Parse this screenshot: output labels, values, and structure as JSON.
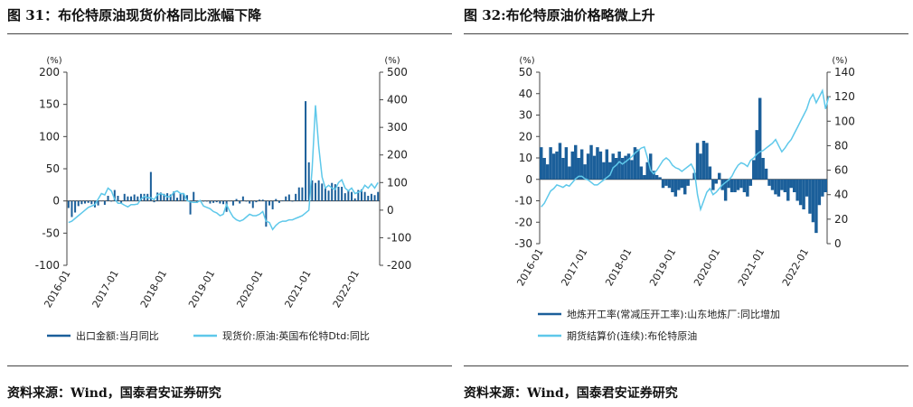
{
  "left": {
    "title": "图 31：布伦特原油现货价格同比涨幅下降",
    "source": "资料来源：Wind，国泰君安证券研究"
  },
  "right": {
    "title": "图 32:布伦特原油价格略微上升",
    "source": "资料来源：Wind，国泰君安证券研究"
  },
  "chart_data": [
    {
      "type": "bar",
      "x_ticks": [
        "2016-01",
        "2017-01",
        "2018-01",
        "2019-01",
        "2020-01",
        "2021-01",
        "2022-01"
      ],
      "left_unit": "(%)",
      "right_unit": "(%)",
      "ylim_left": [
        -100,
        200
      ],
      "yticks_left": [
        -100,
        -50,
        0,
        50,
        100,
        150,
        200
      ],
      "ylim_right": [
        -200,
        500
      ],
      "yticks_right": [
        -200,
        -100,
        0,
        100,
        200,
        300,
        400,
        500
      ],
      "colors": {
        "bars": "#1b5f9a",
        "line": "#5ec8ea"
      },
      "series": [
        {
          "name": "出口金额:当月同比",
          "axis": "left",
          "style": "bar",
          "values": [
            -11,
            -25,
            -18,
            -8,
            -5,
            -4,
            -3,
            -5,
            -10,
            -7,
            0,
            -6,
            8,
            -1,
            17,
            8,
            -3,
            11,
            7,
            7,
            10,
            7,
            11,
            11,
            11,
            45,
            -2,
            13,
            13,
            11,
            12,
            10,
            15,
            5,
            11,
            11,
            9,
            -21,
            14,
            -3,
            1,
            -1,
            -1,
            -4,
            -3,
            -2,
            -4,
            -5,
            -17,
            0,
            -7,
            3,
            -4,
            7,
            -1,
            -4,
            -11,
            -2,
            2,
            2,
            -40,
            -7,
            -13,
            3,
            -3,
            1,
            7,
            10,
            -1,
            11,
            21,
            21,
            155,
            60,
            32,
            28,
            32,
            27,
            20,
            16,
            28,
            26,
            22,
            22,
            12,
            16,
            14,
            4,
            17,
            18,
            14,
            8,
            11,
            9,
            14
          ]
        },
        {
          "name": "现货价:原油:英国布伦特Dtd:同比",
          "axis": "right",
          "style": "line",
          "values": [
            -45,
            -40,
            -30,
            -20,
            -10,
            0,
            10,
            15,
            20,
            40,
            60,
            55,
            80,
            70,
            40,
            25,
            25,
            18,
            12,
            20,
            20,
            22,
            40,
            50,
            45,
            45,
            38,
            55,
            60,
            55,
            48,
            50,
            65,
            70,
            60,
            60,
            35,
            30,
            28,
            28,
            35,
            15,
            10,
            5,
            -5,
            -10,
            -20,
            -15,
            20,
            -5,
            -25,
            -35,
            -40,
            -35,
            -25,
            -15,
            -20,
            -20,
            -15,
            -5,
            -40,
            -45,
            -70,
            -55,
            -45,
            -40,
            -40,
            -35,
            -35,
            -30,
            -25,
            -20,
            -10,
            0,
            150,
            380,
            230,
            120,
            80,
            90,
            80,
            75,
            100,
            110,
            80,
            70,
            80,
            60,
            65,
            70,
            90,
            80,
            95,
            80,
            100
          ]
        }
      ]
    },
    {
      "type": "bar",
      "x_ticks": [
        "2016-01",
        "2017-01",
        "2018-01",
        "2019-01",
        "2020-01",
        "2021-01",
        "2022-01"
      ],
      "left_unit": "(%)",
      "right_unit": "(%)",
      "ylim_left": [
        -30,
        50
      ],
      "yticks_left": [
        -30,
        -20,
        -10,
        0,
        10,
        20,
        30,
        40,
        50
      ],
      "ylim_right": [
        0,
        140
      ],
      "yticks_right": [
        0,
        20,
        40,
        60,
        80,
        100,
        120,
        140
      ],
      "colors": {
        "bars": "#1b5f9a",
        "line": "#5ec8ea"
      },
      "series": [
        {
          "name": "地炼开工率(常减压开工率):山东地炼厂:同比增加",
          "axis": "left",
          "style": "area",
          "values": [
            15,
            10,
            7,
            15,
            12,
            13,
            17,
            10,
            15,
            6,
            13,
            16,
            10,
            14,
            7,
            12,
            16,
            11,
            15,
            13,
            8,
            14,
            8,
            12,
            10,
            13,
            10,
            11,
            12,
            9,
            15,
            14,
            6,
            2,
            8,
            12,
            4,
            2,
            1,
            -4,
            -3,
            -4,
            -6,
            -8,
            -5,
            -4,
            -7,
            -3,
            0,
            3,
            17,
            12,
            18,
            17,
            6,
            -5,
            -2,
            3,
            -5,
            -10,
            -4,
            -6,
            -6,
            -5,
            -4,
            -6,
            -8,
            -3,
            9,
            23,
            38,
            10,
            5,
            -3,
            -5,
            -7,
            -8,
            -5,
            -6,
            -10,
            -4,
            -6,
            -10,
            -12,
            -14,
            -8,
            -16,
            -20,
            -25,
            -12,
            -8,
            -6
          ]
        },
        {
          "name": "期货结算价(连续):布伦特原油",
          "axis": "right",
          "style": "line",
          "values": [
            30,
            33,
            38,
            43,
            45,
            48,
            47,
            46,
            48,
            47,
            50,
            53,
            55,
            55,
            53,
            52,
            50,
            48,
            48,
            50,
            52,
            54,
            56,
            62,
            64,
            67,
            65,
            67,
            69,
            71,
            74,
            76,
            78,
            79,
            70,
            60,
            57,
            60,
            64,
            68,
            70,
            68,
            64,
            62,
            61,
            59,
            61,
            63,
            65,
            60,
            40,
            28,
            35,
            42,
            45,
            40,
            42,
            45,
            48,
            50,
            52,
            55,
            60,
            64,
            66,
            65,
            63,
            68,
            70,
            73,
            75,
            76,
            78,
            80,
            82,
            85,
            80,
            75,
            78,
            82,
            85,
            90,
            95,
            100,
            105,
            110,
            118,
            122,
            115,
            120,
            125,
            110,
            120
          ]
        }
      ]
    }
  ]
}
